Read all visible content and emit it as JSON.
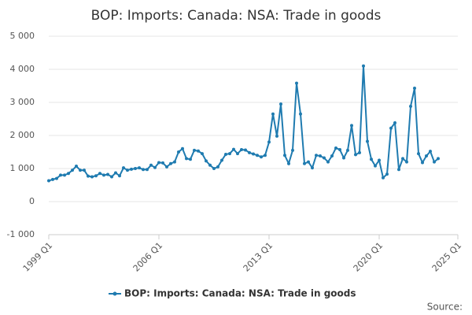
{
  "chart_data": {
    "type": "line",
    "title": "BOP: Imports: Canada: NSA: Trade in goods",
    "source": "Source:",
    "x": [
      1999,
      1999.25,
      1999.5,
      1999.75,
      2000,
      2000.25,
      2000.5,
      2000.75,
      2001,
      2001.25,
      2001.5,
      2001.75,
      2002,
      2002.25,
      2002.5,
      2002.75,
      2003,
      2003.25,
      2003.5,
      2003.75,
      2004,
      2004.25,
      2004.5,
      2004.75,
      2005,
      2005.25,
      2005.5,
      2005.75,
      2006,
      2006.25,
      2006.5,
      2006.75,
      2007,
      2007.25,
      2007.5,
      2007.75,
      2008,
      2008.25,
      2008.5,
      2008.75,
      2009,
      2009.25,
      2009.5,
      2009.75,
      2010,
      2010.25,
      2010.5,
      2010.75,
      2011,
      2011.25,
      2011.5,
      2011.75,
      2012,
      2012.25,
      2012.5,
      2012.75,
      2013,
      2013.25,
      2013.5,
      2013.75,
      2014,
      2014.25,
      2014.5,
      2014.75,
      2015,
      2015.25,
      2015.5,
      2015.75,
      2016,
      2016.25,
      2016.5,
      2016.75,
      2017,
      2017.25,
      2017.5,
      2017.75,
      2018,
      2018.25,
      2018.5,
      2018.75,
      2019,
      2019.25,
      2019.5,
      2019.75,
      2020,
      2020.25,
      2020.5,
      2020.75,
      2021,
      2021.25,
      2021.5,
      2021.75,
      2022,
      2022.25,
      2022.5,
      2022.75,
      2023,
      2023.25,
      2023.5,
      2023.75
    ],
    "series": [
      {
        "name": "BOP: Imports: Canada: NSA: Trade in goods",
        "color": "#1f7bb0",
        "values": [
          630,
          670,
          700,
          800,
          800,
          850,
          950,
          1070,
          950,
          950,
          770,
          750,
          780,
          850,
          800,
          820,
          750,
          870,
          780,
          1020,
          950,
          980,
          1000,
          1020,
          970,
          970,
          1100,
          1030,
          1180,
          1170,
          1050,
          1150,
          1200,
          1500,
          1600,
          1300,
          1280,
          1550,
          1530,
          1450,
          1230,
          1100,
          1000,
          1050,
          1250,
          1430,
          1450,
          1580,
          1450,
          1570,
          1560,
          1480,
          1440,
          1400,
          1350,
          1400,
          1800,
          2650,
          1980,
          2950,
          1400,
          1150,
          1550,
          3580,
          2650,
          1150,
          1200,
          1020,
          1400,
          1380,
          1320,
          1200,
          1380,
          1620,
          1570,
          1320,
          1550,
          2300,
          1420,
          1480,
          4100,
          1820,
          1280,
          1080,
          1250,
          720,
          830,
          2220,
          2380,
          970,
          1300,
          1200,
          2880,
          3430,
          1450,
          1180,
          1380,
          1520,
          1200,
          1300
        ]
      }
    ],
    "xlim": [
      1999,
      2025
    ],
    "xticks": [
      {
        "value": 1999,
        "label": "1999 Q1"
      },
      {
        "value": 2006,
        "label": "2006 Q1"
      },
      {
        "value": 2013,
        "label": "2013 Q1"
      },
      {
        "value": 2020,
        "label": "2020 Q1"
      },
      {
        "value": 2025,
        "label": "2025 Q1"
      }
    ],
    "ylim": [
      -1000,
      5000
    ],
    "yticks": [
      {
        "value": -1000,
        "label": "-1 000"
      },
      0,
      {
        "value": 1000,
        "label": "1 000"
      },
      {
        "value": 2000,
        "label": "2 000"
      },
      {
        "value": 3000,
        "label": "3 000"
      },
      {
        "value": 4000,
        "label": "4 000"
      },
      {
        "value": 5000,
        "label": "5 000"
      }
    ],
    "grid": true,
    "legend": "bottom"
  }
}
